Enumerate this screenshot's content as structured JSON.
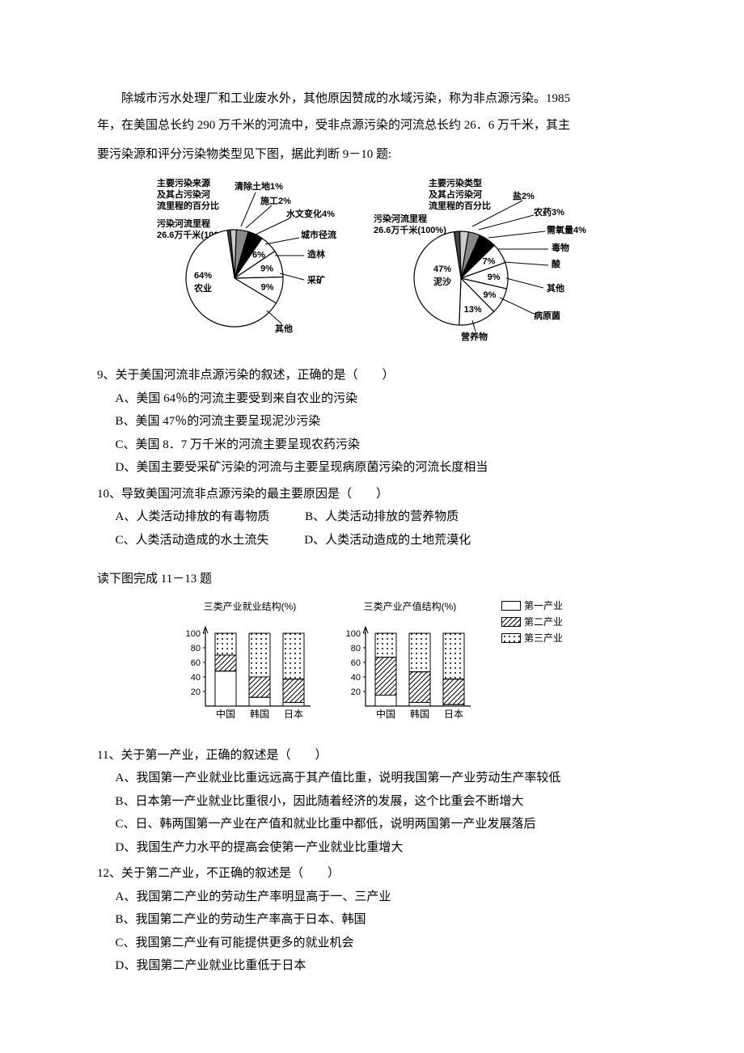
{
  "intro": {
    "p1_a": "除城市污水处理厂和工业废水外，其他原因赞成的水域污染，称为非点源污染。1985",
    "p1_b": "年，在美国总长约 290 万千米的河流中，受非点源污染的河流总长约 26．6 万千米，其主",
    "p1_c": "要污染源和评分污染物类型见下图，据此判断 9－10 题:"
  },
  "pie1": {
    "header_l1": "主要污染来源",
    "header_l2": "及其占污染河",
    "header_l3": "流里程的百分比",
    "sub_l1": "污染河流里程",
    "sub_l2": "26.6万千米(100%)",
    "slices": [
      {
        "label": "农业",
        "pct": "64%",
        "value": 64,
        "color": "#ffffff"
      },
      {
        "label": "其他",
        "pct": "9%",
        "value": 9,
        "color": "#ffffff"
      },
      {
        "label": "采矿",
        "pct": "9%",
        "value": 9,
        "color": "#ffffff"
      },
      {
        "label": "造林",
        "pct": "6%",
        "value": 6,
        "color": "#ffffff"
      },
      {
        "label": "城市径流",
        "pct": "5%",
        "value": 5,
        "color": "#000000"
      },
      {
        "label": "水文变化4%",
        "pct": "",
        "value": 4,
        "color": "#888888"
      },
      {
        "label": "施工2%",
        "pct": "",
        "value": 2,
        "color": "#cccccc"
      },
      {
        "label": "清除土地1%",
        "pct": "",
        "value": 1,
        "color": "#444444"
      }
    ]
  },
  "pie2": {
    "header_l1": "主要污染类型",
    "header_l2": "及其占污染河",
    "header_l3": "流里程的百分比",
    "extra": "盐2%",
    "sub_l1": "污染河流里程",
    "sub_l2": "26.6万千米(100%)",
    "slices": [
      {
        "label": "泥沙",
        "pct": "47%",
        "value": 47,
        "color": "#ffffff"
      },
      {
        "label": "营养物",
        "pct": "13%",
        "value": 13,
        "color": "#ffffff"
      },
      {
        "label": "病原菌",
        "pct": "9%",
        "value": 9,
        "color": "#ffffff"
      },
      {
        "label": "其他",
        "pct": "9%",
        "value": 9,
        "color": "#ffffff"
      },
      {
        "label": "酸",
        "pct": "7%",
        "value": 7,
        "color": "#ffffff"
      },
      {
        "label": "毒物",
        "pct": "6%",
        "value": 6,
        "color": "#000000"
      },
      {
        "label": "需氧量4%",
        "pct": "",
        "value": 4,
        "color": "#888888"
      },
      {
        "label": "农药3%",
        "pct": "",
        "value": 3,
        "color": "#cccccc"
      },
      {
        "label": "盐2%",
        "pct": "",
        "value": 2,
        "color": "#444444"
      }
    ]
  },
  "q9": {
    "stem": "9、关于美国河流非点源污染的叙述，正确的是（　　）",
    "a": "A、美国 64％的河流主要受到来自农业的污染",
    "b": "B、美国 47％的河流主要呈现泥沙污染",
    "c": "C、美国 8．7 万千米的河流主要呈现农药污染",
    "d": "D、美国主要受采矿污染的河流与主要呈现病原菌污染的河流长度相当"
  },
  "q10": {
    "stem": "10、导致美国河流非点源污染的最主要原因是（　　）",
    "a": "A、人类活动排放的有毒物质",
    "b": "B、人类活动排放的营养物质",
    "c": "C、人类活动造成的水土流失",
    "d": "D、人类活动造成的土地荒漠化"
  },
  "sec2": "读下图完成 11－13 题",
  "bar_charts": {
    "title1": "三类产业就业结构(%)",
    "title2": "三类产业产值结构(%)",
    "y_ticks": [
      "20",
      "40",
      "60",
      "80",
      "100"
    ],
    "countries": [
      "中国",
      "韩国",
      "日本"
    ],
    "employment": {
      "china": {
        "p1": 48,
        "p2": 22,
        "p3": 30
      },
      "korea": {
        "p1": 12,
        "p2": 28,
        "p3": 60
      },
      "japan": {
        "p1": 5,
        "p2": 32,
        "p3": 63
      }
    },
    "output": {
      "china": {
        "p1": 15,
        "p2": 52,
        "p3": 33
      },
      "korea": {
        "p1": 5,
        "p2": 42,
        "p3": 53
      },
      "japan": {
        "p1": 2,
        "p2": 35,
        "p3": 63
      }
    },
    "legend": {
      "p1": "第一产业",
      "p2": "第二产业",
      "p3": "第三产业"
    },
    "colors": {
      "p1_fill": "#ffffff",
      "p2_pattern": "hatch",
      "p3_pattern": "dots",
      "border": "#000000"
    }
  },
  "q11": {
    "stem": "11、关于第一产业，正确的叙述是（　　）",
    "a": "A、我国第一产业就业比重远远高于其产值比重，说明我国第一产业劳动生产率较低",
    "b": "B、日本第一产业就业比重很小，因此随着经济的发展，这个比重会不断增大",
    "c": "C、日、韩两国第一产业在产值和就业比重中都低，说明两国第一产业发展落后",
    "d": "D、我国生产力水平的提高会使第一产业就业比重增大"
  },
  "q12": {
    "stem": "12、关于第二产业，不正确的叙述是（　　）",
    "a": "A、我国第二产业的劳动生产率明显高于一、三产业",
    "b": "B、我国第二产业的劳动生产率高于日本、韩国",
    "c": "C、我国第二产业有可能提供更多的就业机会",
    "d": "D、我国第二产业就业比重低于日本"
  }
}
